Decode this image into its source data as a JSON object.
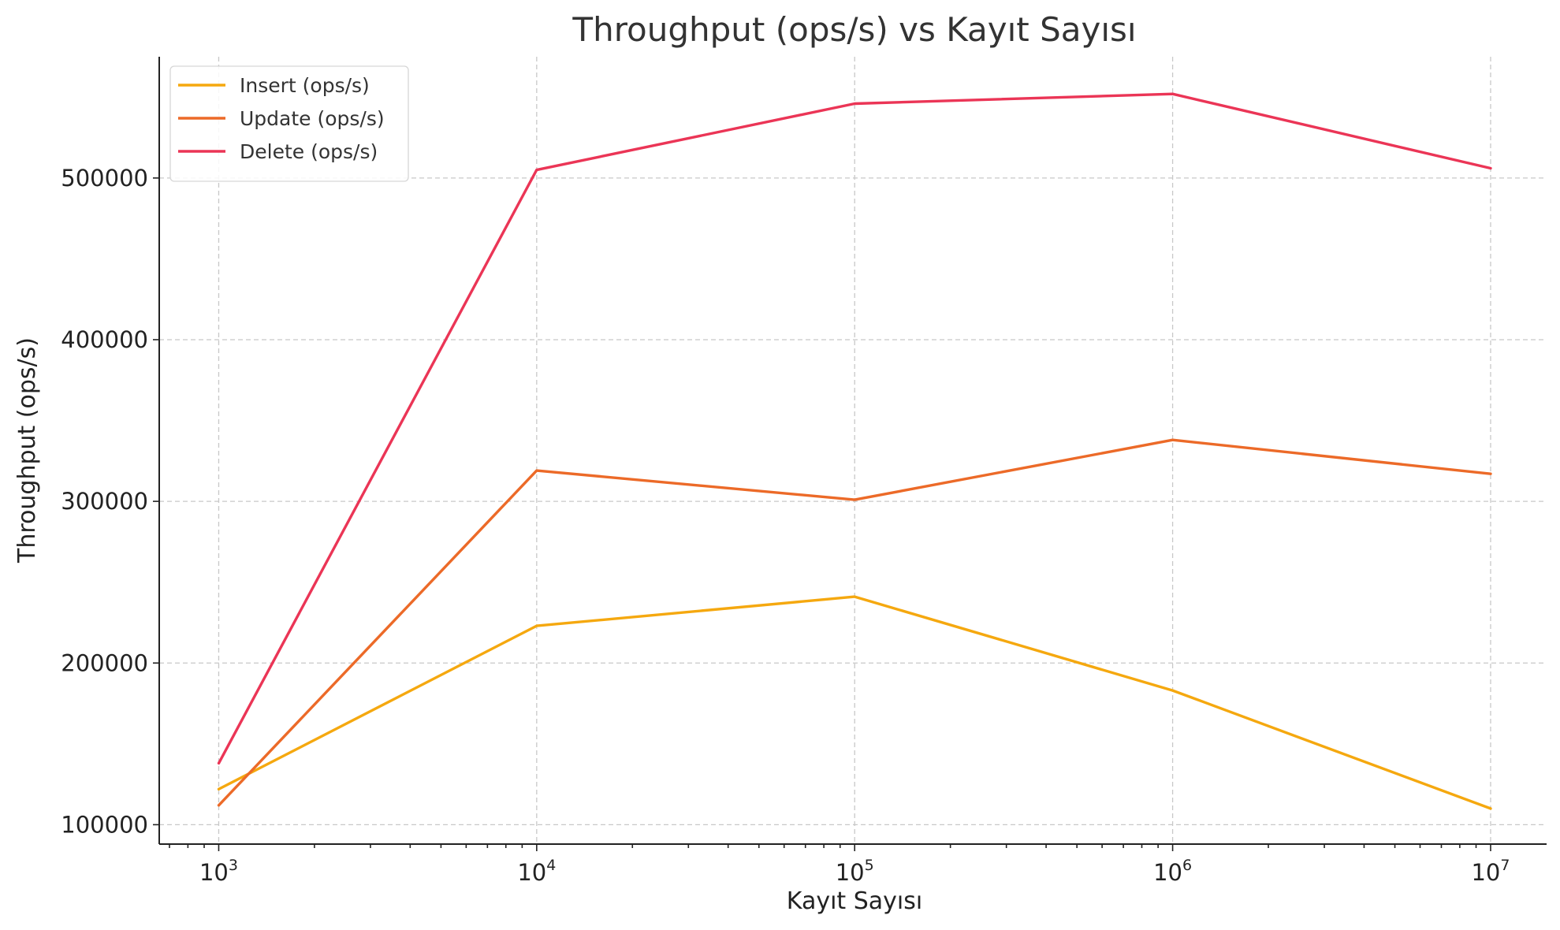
{
  "chart_data": {
    "type": "line",
    "title": "Throughput (ops/s) vs Kayıt Sayısı",
    "xlabel": "Kayıt Sayısı",
    "ylabel": "Throughput (ops/s)",
    "x_scale": "log",
    "x": [
      1000,
      10000,
      100000,
      1000000,
      10000000
    ],
    "x_tick_labels": [
      {
        "base": "10",
        "exp": "3"
      },
      {
        "base": "10",
        "exp": "4"
      },
      {
        "base": "10",
        "exp": "5"
      },
      {
        "base": "10",
        "exp": "6"
      },
      {
        "base": "10",
        "exp": "7"
      }
    ],
    "xlim": [
      650,
      15000000
    ],
    "ylim": [
      88000,
      575000
    ],
    "y_ticks": [
      100000,
      200000,
      300000,
      400000,
      500000
    ],
    "y_tick_labels": [
      "100000",
      "200000",
      "300000",
      "400000",
      "500000"
    ],
    "grid": true,
    "legend_position": "top-left",
    "series": [
      {
        "name": "Insert (ops/s)",
        "color": "#f5a80f",
        "values": [
          122000,
          223000,
          241000,
          183000,
          110000
        ]
      },
      {
        "name": "Update (ops/s)",
        "color": "#ec6a28",
        "values": [
          112000,
          319000,
          301000,
          338000,
          317000
        ]
      },
      {
        "name": "Delete (ops/s)",
        "color": "#eb3556",
        "values": [
          138000,
          505000,
          546000,
          552000,
          506000
        ]
      }
    ]
  }
}
